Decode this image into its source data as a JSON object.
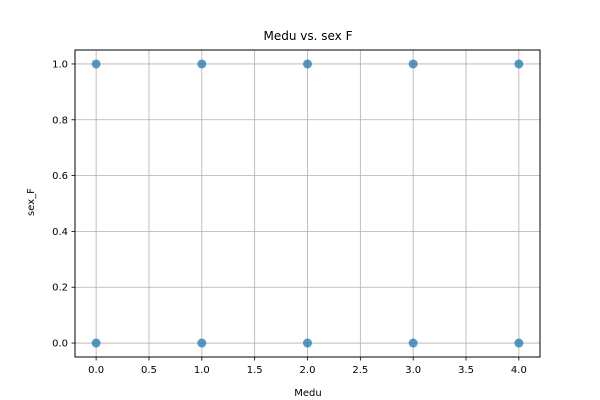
{
  "chart_data": {
    "type": "scatter",
    "title": "Medu vs. sex F",
    "xlabel": "Medu",
    "ylabel": "sex_F",
    "xlim": [
      -0.2,
      4.2
    ],
    "ylim": [
      -0.05,
      1.05
    ],
    "x_ticks": [
      "0.0",
      "0.5",
      "1.0",
      "1.5",
      "2.0",
      "2.5",
      "3.0",
      "3.5",
      "4.0"
    ],
    "y_ticks": [
      "0.0",
      "0.2",
      "0.4",
      "0.6",
      "0.8",
      "1.0"
    ],
    "grid": true,
    "series": [
      {
        "color": "#1f77b4",
        "points": [
          {
            "x": 0,
            "y": 1
          },
          {
            "x": 0,
            "y": 0
          },
          {
            "x": 1,
            "y": 1
          },
          {
            "x": 1,
            "y": 0
          },
          {
            "x": 2,
            "y": 1
          },
          {
            "x": 2,
            "y": 0
          },
          {
            "x": 3,
            "y": 1
          },
          {
            "x": 3,
            "y": 0
          },
          {
            "x": 4,
            "y": 1
          },
          {
            "x": 4,
            "y": 0
          }
        ]
      }
    ]
  }
}
